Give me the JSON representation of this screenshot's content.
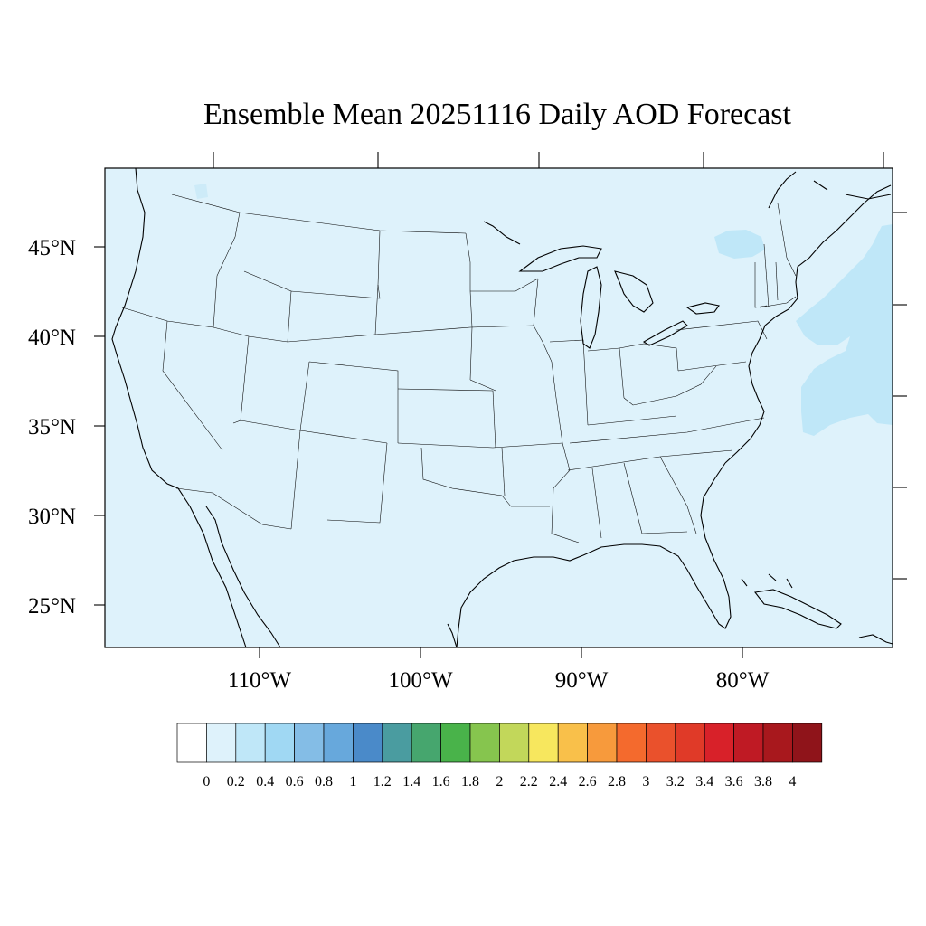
{
  "title": "Ensemble Mean 20251116 Daily AOD Forecast",
  "map": {
    "background_color": "#def2fb",
    "field_colors": [
      "#bfe7f8",
      "#a6dcf5"
    ],
    "lat_labels": [
      "45°N",
      "40°N",
      "35°N",
      "30°N",
      "25°N"
    ],
    "lon_labels": [
      "110°W",
      "100°W",
      "90°W",
      "80°W"
    ]
  },
  "colorbar": {
    "colors": [
      "#ffffff",
      "#def2fb",
      "#bfe7f8",
      "#a0d8f3",
      "#84bde6",
      "#67a8dc",
      "#4a8ac9",
      "#4a9ca0",
      "#46a66e",
      "#49b34a",
      "#86c54e",
      "#c2d75a",
      "#f7e75e",
      "#f9c04a",
      "#f79a3c",
      "#f46a2d",
      "#ea512c",
      "#e03a28",
      "#d82129",
      "#bf1a24",
      "#a8181d",
      "#8f141a"
    ],
    "labels": [
      "0",
      "0.2",
      "0.4",
      "0.6",
      "0.8",
      "1",
      "1.2",
      "1.4",
      "1.6",
      "1.8",
      "2",
      "2.2",
      "2.4",
      "2.6",
      "2.8",
      "3",
      "3.2",
      "3.4",
      "3.6",
      "3.8",
      "4"
    ]
  }
}
